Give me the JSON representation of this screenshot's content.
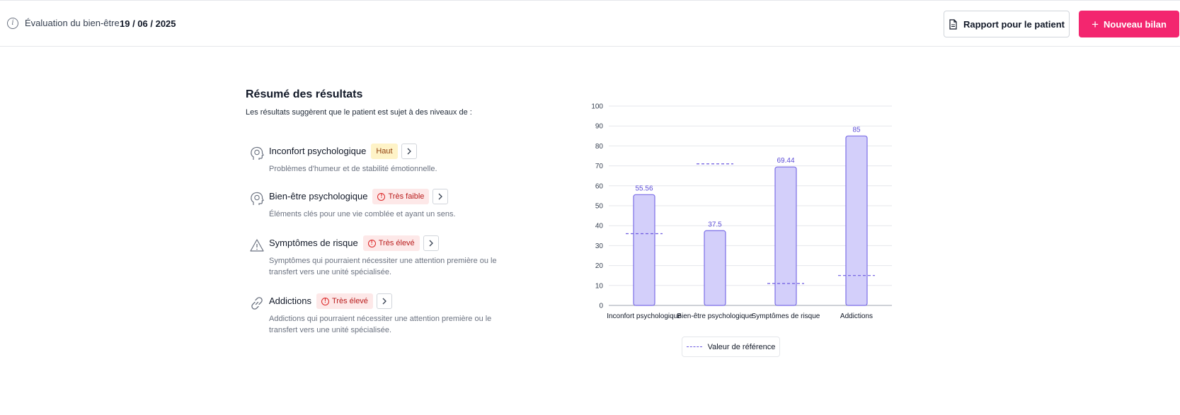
{
  "header": {
    "eval_label": "Évaluation du bien-être",
    "eval_date": "19 / 06 / 2025",
    "report_button": "Rapport pour le patient",
    "new_button": "Nouveau bilan"
  },
  "summary": {
    "title": "Résumé des résultats",
    "subtitle": "Les résultats suggèrent que le patient est sujet à des niveaux de :",
    "items": [
      {
        "title": "Inconfort psychologique",
        "badge": "Haut",
        "level": "high",
        "description": "Problèmes d'humeur et de stabilité émotionnelle.",
        "icon": "head-brain-icon"
      },
      {
        "title": "Bien-être psychologique",
        "badge": "Très faible",
        "level": "veryhigh",
        "description": "Éléments clés pour une vie comblée et ayant un sens.",
        "icon": "head-brain-icon"
      },
      {
        "title": "Symptômes de risque",
        "badge": "Très élevé",
        "level": "veryhigh",
        "description": "Symptômes qui pourraient nécessiter une attention première ou le transfert vers une unité spécialisée.",
        "icon": "warning-triangle-icon"
      },
      {
        "title": "Addictions",
        "badge": "Très élevé",
        "level": "veryhigh",
        "description": "Addictions qui pourraient nécessiter une attention première ou le transfert vers une unité spécialisée.",
        "icon": "chain-link-icon"
      }
    ]
  },
  "chart_data": {
    "type": "bar",
    "categories": [
      "Inconfort psychologique",
      "Bien-être psychologique",
      "Symptômes de risque",
      "Addictions"
    ],
    "values": [
      55.56,
      37.5,
      69.44,
      85
    ],
    "value_labels": [
      "55.56",
      "37.5",
      "69.44",
      "85"
    ],
    "reference_values": [
      36,
      71,
      11,
      15
    ],
    "ylim": [
      0,
      100
    ],
    "yticks": [
      0,
      10,
      20,
      30,
      40,
      50,
      60,
      70,
      80,
      90,
      100
    ],
    "grid": true,
    "legend": "Valeur de référence",
    "legend_position": "bottom",
    "colors": {
      "bar_fill": "#d3cffa",
      "bar_stroke": "#7b6ee6",
      "reference": "#6d5be0",
      "value_label": "#5b4bd6"
    }
  },
  "colors": {
    "accent": "#f3266f",
    "high_badge_bg": "#fef3c7",
    "veryhigh_badge_bg": "#fde8e8"
  }
}
